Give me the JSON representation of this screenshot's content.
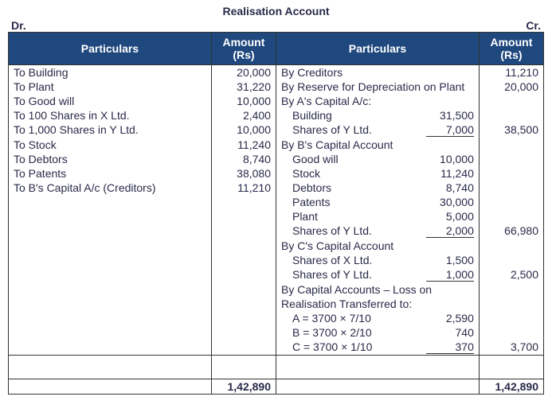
{
  "title": "Realisation Account",
  "dr_label": "Dr.",
  "cr_label": "Cr.",
  "headers": {
    "particulars": "Particulars",
    "amount": "Amount (Rs)"
  },
  "dr": [
    {
      "label": "To Building",
      "amount": "20,000"
    },
    {
      "label": "To Plant",
      "amount": "31,220"
    },
    {
      "label": "To Good will",
      "amount": "10,000"
    },
    {
      "label": "To 100 Shares in X Ltd.",
      "amount": "2,400"
    },
    {
      "label": "To 1,000 Shares in Y Ltd.",
      "amount": "10,000"
    },
    {
      "label": "To Stock",
      "amount": "11,240"
    },
    {
      "label": "To Debtors",
      "amount": "8,740"
    },
    {
      "label": "To Patents",
      "amount": "38,080"
    },
    {
      "label": "To B's Capital A/c (Creditors)",
      "amount": "11,210"
    }
  ],
  "cr": {
    "lines": [
      {
        "label": "By Creditors",
        "amount": "11,210"
      },
      {
        "label": "By Reserve for Depreciation on Plant",
        "amount": "20,000"
      }
    ],
    "groups": [
      {
        "header": "By A's Capital A/c:",
        "subs": [
          {
            "label": "Building",
            "value": "31,500"
          },
          {
            "label": "Shares of Y Ltd.",
            "value": "7,000",
            "underline": true
          }
        ],
        "total": "38,500"
      },
      {
        "header": "By B's Capital Account",
        "subs": [
          {
            "label": "Good will",
            "value": "10,000"
          },
          {
            "label": "Stock",
            "value": "11,240"
          },
          {
            "label": "Debtors",
            "value": "8,740"
          },
          {
            "label": "Patents",
            "value": "30,000"
          },
          {
            "label": "Plant",
            "value": "5,000"
          },
          {
            "label": "Shares of Y Ltd.",
            "value": "2,000",
            "underline": true
          }
        ],
        "total": "66,980"
      },
      {
        "header": "By C's Capital Account",
        "subs": [
          {
            "label": "Shares of X Ltd.",
            "value": "1,500"
          },
          {
            "label": "Shares of Y Ltd.",
            "value": "1,000",
            "underline": true
          }
        ],
        "total": "2,500"
      },
      {
        "header": "By Capital Accounts – Loss on",
        "header2": "Realisation Transferred to:",
        "subs": [
          {
            "label": "A = 3700 × 7/10",
            "value": "2,590"
          },
          {
            "label": "B = 3700 × 2/10",
            "value": "740"
          },
          {
            "label": "C = 3700 × 1/10",
            "value": "370",
            "underline": true
          }
        ],
        "total": "3,700"
      }
    ]
  },
  "totals": {
    "dr": "1,42,890",
    "cr": "1,42,890"
  },
  "colors": {
    "header_bg": "#1f487e",
    "header_fg": "#ffffff",
    "text": "#2a2a4a",
    "border": "#333333"
  }
}
